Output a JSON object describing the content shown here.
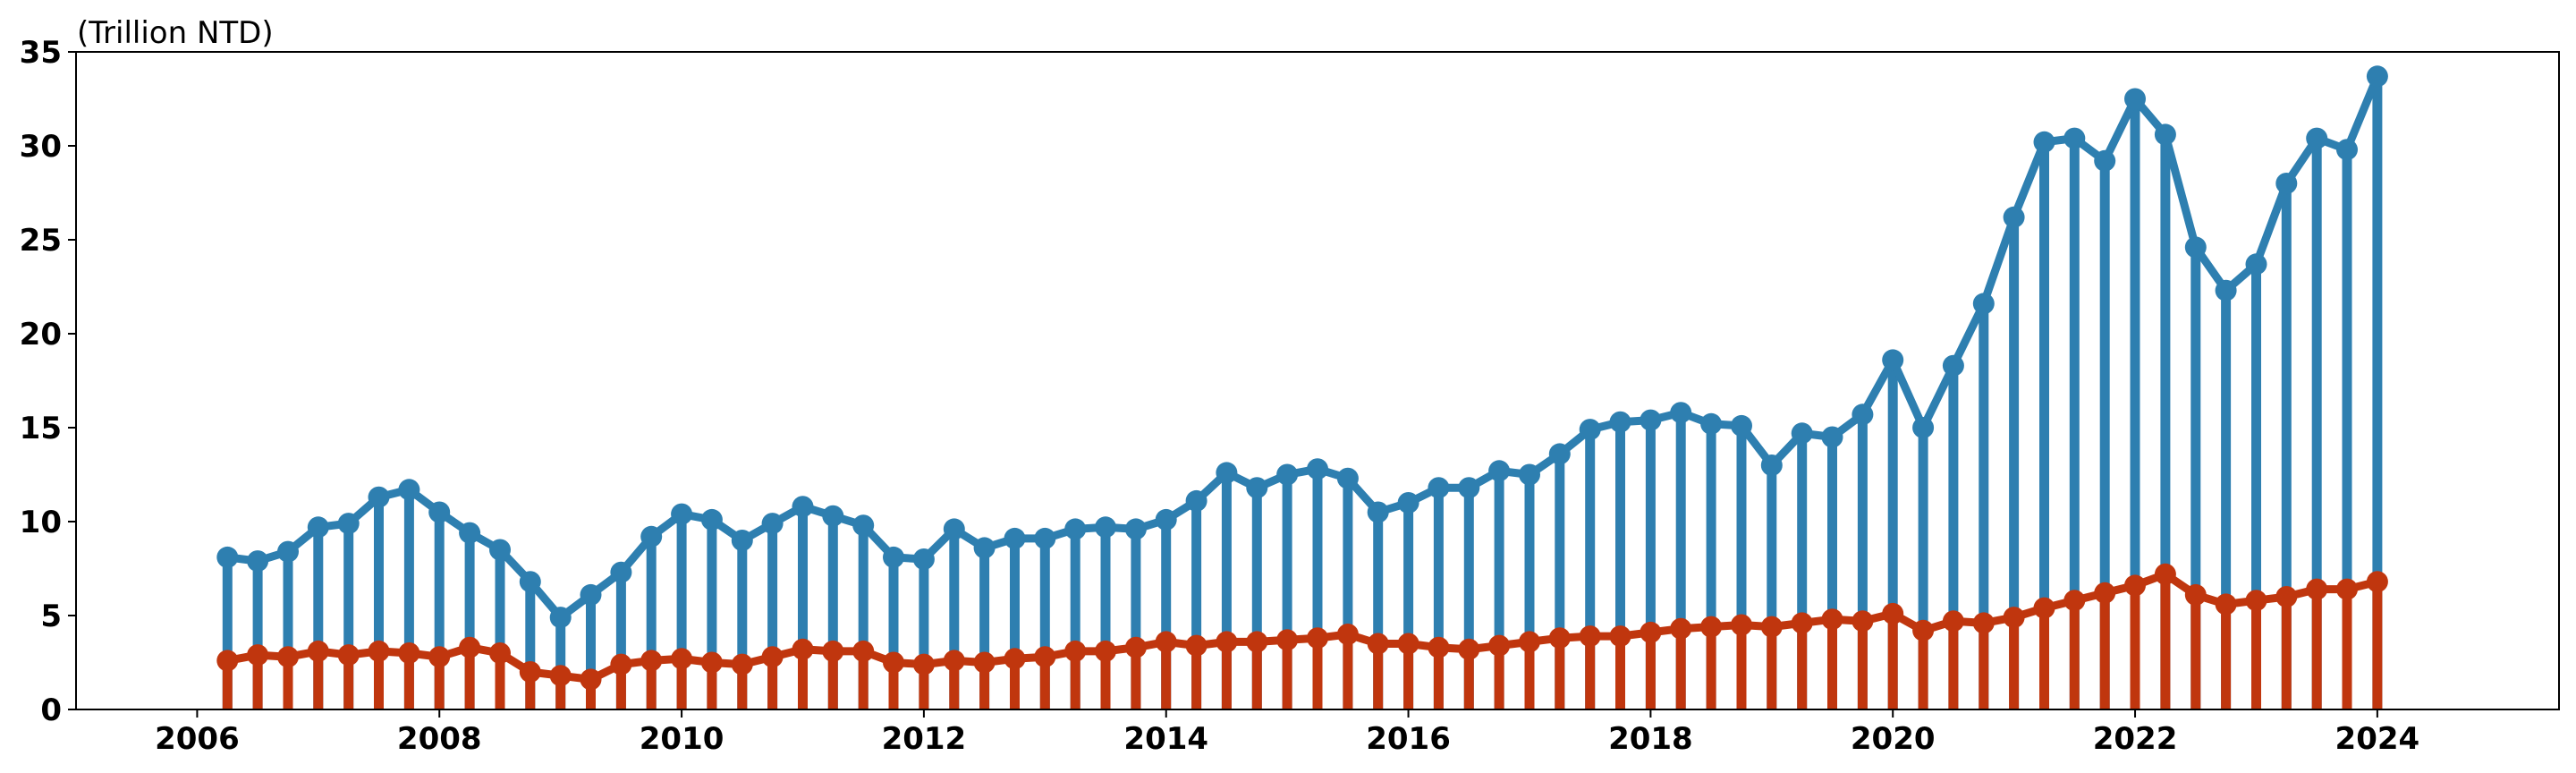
{
  "chart_data": {
    "type": "line",
    "title": "",
    "xlabel": "",
    "ylabel": "",
    "unit_label": "(Trillion NTD)",
    "xlim": [
      2005.0,
      2025.5
    ],
    "ylim": [
      0,
      35
    ],
    "x_ticks": [
      2006,
      2008,
      2010,
      2012,
      2014,
      2016,
      2018,
      2020,
      2022,
      2024
    ],
    "y_ticks": [
      0,
      5,
      10,
      15,
      20,
      25,
      30,
      35
    ],
    "grid": false,
    "legend": "none",
    "x": [
      2006.25,
      2006.5,
      2006.75,
      2007.0,
      2007.25,
      2007.5,
      2007.75,
      2008.0,
      2008.25,
      2008.5,
      2008.75,
      2009.0,
      2009.25,
      2009.5,
      2009.75,
      2010.0,
      2010.25,
      2010.5,
      2010.75,
      2011.0,
      2011.25,
      2011.5,
      2011.75,
      2012.0,
      2012.25,
      2012.5,
      2012.75,
      2013.0,
      2013.25,
      2013.5,
      2013.75,
      2014.0,
      2014.25,
      2014.5,
      2014.75,
      2015.0,
      2015.25,
      2015.5,
      2015.75,
      2016.0,
      2016.25,
      2016.5,
      2016.75,
      2017.0,
      2017.25,
      2017.5,
      2017.75,
      2018.0,
      2018.25,
      2018.5,
      2018.75,
      2019.0,
      2019.25,
      2019.5,
      2019.75,
      2020.0,
      2020.25,
      2020.5,
      2020.75,
      2021.0,
      2021.25,
      2021.5,
      2021.75,
      2022.0,
      2022.25,
      2022.5,
      2022.75,
      2023.0,
      2023.25,
      2023.5,
      2023.75,
      2024.0
    ],
    "series": [
      {
        "color": "#2e7fb0",
        "values": [
          8.1,
          7.9,
          8.4,
          9.7,
          9.9,
          11.3,
          11.7,
          10.5,
          9.4,
          8.5,
          6.8,
          4.9,
          6.1,
          7.3,
          9.2,
          10.4,
          10.1,
          9.0,
          9.9,
          10.8,
          10.3,
          9.8,
          8.1,
          8.0,
          9.6,
          8.6,
          9.1,
          9.1,
          9.6,
          9.7,
          9.6,
          10.1,
          11.1,
          12.6,
          11.8,
          12.5,
          12.8,
          12.3,
          10.5,
          11.0,
          11.8,
          11.8,
          12.7,
          12.5,
          13.6,
          14.9,
          15.3,
          15.4,
          15.8,
          15.2,
          15.1,
          13.0,
          14.7,
          14.5,
          15.7,
          18.6,
          15.0,
          18.3,
          21.6,
          26.2,
          30.2,
          30.4,
          29.2,
          32.5,
          30.6,
          24.6,
          22.3,
          23.7,
          28.0,
          30.4,
          29.8,
          33.7
        ]
      },
      {
        "color": "#c0360e",
        "values": [
          2.6,
          2.9,
          2.8,
          3.1,
          2.9,
          3.1,
          3.0,
          2.8,
          3.3,
          3.0,
          2.0,
          1.8,
          1.6,
          2.4,
          2.6,
          2.7,
          2.5,
          2.4,
          2.8,
          3.2,
          3.1,
          3.1,
          2.5,
          2.4,
          2.6,
          2.5,
          2.7,
          2.8,
          3.1,
          3.1,
          3.3,
          3.6,
          3.4,
          3.6,
          3.6,
          3.7,
          3.8,
          4.0,
          3.5,
          3.5,
          3.3,
          3.2,
          3.4,
          3.6,
          3.8,
          3.9,
          3.9,
          4.1,
          4.3,
          4.4,
          4.5,
          4.4,
          4.6,
          4.8,
          4.7,
          5.1,
          4.2,
          4.7,
          4.6,
          4.9,
          5.4,
          5.8,
          6.2,
          6.6,
          7.2,
          6.1,
          5.6,
          5.8,
          6.0,
          6.4,
          6.4,
          6.8
        ]
      }
    ]
  }
}
